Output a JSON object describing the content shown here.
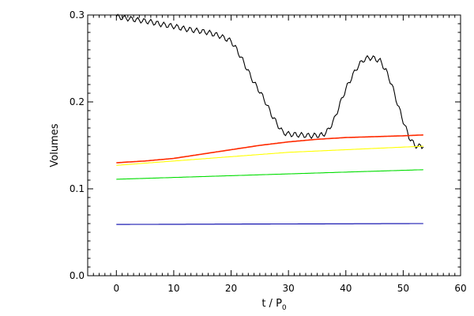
{
  "chart_data": {
    "type": "line",
    "xlabel_main": "t / P",
    "xlabel_sub": "0",
    "ylabel": "Volumes",
    "xlim": [
      -5,
      60
    ],
    "ylim": [
      0.0,
      0.3
    ],
    "xticks": [
      0,
      10,
      20,
      30,
      40,
      50,
      60
    ],
    "xtick_labels": [
      "0",
      "10",
      "20",
      "30",
      "40",
      "50",
      "60"
    ],
    "yticks": [
      0.0,
      0.1,
      0.2,
      0.3
    ],
    "ytick_labels": [
      "0.0",
      "0.1",
      "0.2",
      "0.3"
    ],
    "grid": false,
    "series": [
      {
        "color": "#000000",
        "wiggle": 0.003,
        "x": [
          0,
          2,
          4,
          6,
          8,
          10,
          12,
          14,
          16,
          18,
          20,
          21,
          22,
          23,
          24,
          25,
          26,
          27,
          28,
          29,
          30,
          32,
          34,
          36,
          37,
          38,
          39,
          40,
          41,
          42,
          43,
          44,
          45,
          46,
          47,
          48,
          49,
          50,
          51,
          52,
          53.5
        ],
        "y": [
          0.298,
          0.296,
          0.294,
          0.292,
          0.289,
          0.287,
          0.284,
          0.282,
          0.28,
          0.276,
          0.27,
          0.26,
          0.248,
          0.235,
          0.222,
          0.212,
          0.2,
          0.186,
          0.175,
          0.165,
          0.163,
          0.162,
          0.161,
          0.162,
          0.168,
          0.18,
          0.198,
          0.215,
          0.228,
          0.24,
          0.248,
          0.251,
          0.25,
          0.247,
          0.236,
          0.22,
          0.198,
          0.178,
          0.16,
          0.15,
          0.148
        ]
      },
      {
        "color": "#ff2a00",
        "wiggle": 0,
        "x": [
          0,
          5,
          10,
          15,
          20,
          25,
          30,
          35,
          40,
          45,
          50,
          53.5
        ],
        "y": [
          0.13,
          0.132,
          0.135,
          0.14,
          0.145,
          0.15,
          0.154,
          0.157,
          0.159,
          0.16,
          0.161,
          0.162
        ]
      },
      {
        "color": "#ffff00",
        "wiggle": 0,
        "x": [
          0,
          10,
          20,
          30,
          40,
          50,
          53.5
        ],
        "y": [
          0.127,
          0.132,
          0.137,
          0.142,
          0.145,
          0.148,
          0.149
        ]
      },
      {
        "color": "#00dd00",
        "wiggle": 0,
        "x": [
          0,
          53.5
        ],
        "y": [
          0.111,
          0.122
        ]
      },
      {
        "color": "#0000aa",
        "wiggle": 0,
        "x": [
          0,
          53.5
        ],
        "y": [
          0.059,
          0.06
        ]
      }
    ]
  }
}
